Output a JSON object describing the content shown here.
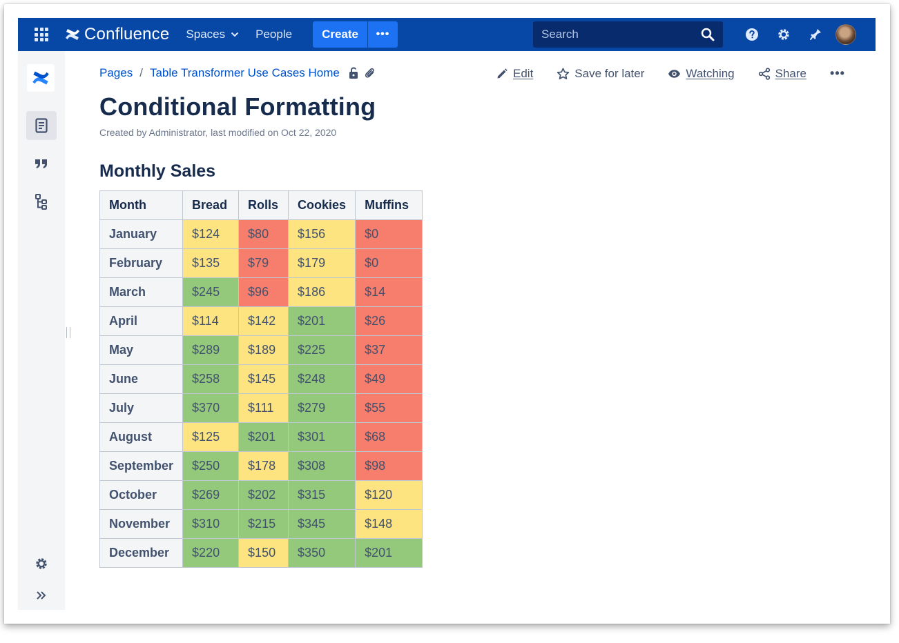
{
  "nav": {
    "logo_text": "Confluence",
    "spaces_label": "Spaces",
    "people_label": "People",
    "create_label": "Create",
    "more_label": "•••",
    "search_placeholder": "Search",
    "icons": [
      "app-switcher-icon",
      "help-icon",
      "settings-icon",
      "notifications-icon",
      "avatar"
    ]
  },
  "sidebar": {
    "items": [
      "space-logo",
      "pages-icon",
      "blog-quote-icon",
      "page-tree-icon",
      "space-settings-icon",
      "expand-sidebar-icon"
    ]
  },
  "breadcrumb": {
    "items": [
      "Pages",
      "Table Transformer Use Cases Home"
    ],
    "separator": "/"
  },
  "actions": {
    "edit": "Edit",
    "save_for_later": "Save for later",
    "watching": "Watching",
    "share": "Share",
    "more": "•••"
  },
  "page": {
    "title": "Conditional Formatting",
    "byline": "Created by Administrator, last modified on Oct 22, 2020",
    "section_heading": "Monthly Sales"
  },
  "colors": {
    "nav_bg": "#0747a6",
    "create_bg": "#1c72f2",
    "link": "#0052cc",
    "cell_green": "#94c97b",
    "cell_yellow": "#fde481",
    "cell_red": "#f77e6c"
  },
  "table": {
    "headers": [
      "Month",
      "Bread",
      "Rolls",
      "Cookies",
      "Muffins"
    ],
    "rows": [
      {
        "month": "January",
        "cells": [
          {
            "v": "$124",
            "c": "y"
          },
          {
            "v": "$80",
            "c": "r"
          },
          {
            "v": "$156",
            "c": "y"
          },
          {
            "v": "$0",
            "c": "r"
          }
        ]
      },
      {
        "month": "February",
        "cells": [
          {
            "v": "$135",
            "c": "y"
          },
          {
            "v": "$79",
            "c": "r"
          },
          {
            "v": "$179",
            "c": "y"
          },
          {
            "v": "$0",
            "c": "r"
          }
        ]
      },
      {
        "month": "March",
        "cells": [
          {
            "v": "$245",
            "c": "g"
          },
          {
            "v": "$96",
            "c": "r"
          },
          {
            "v": "$186",
            "c": "y"
          },
          {
            "v": "$14",
            "c": "r"
          }
        ]
      },
      {
        "month": "April",
        "cells": [
          {
            "v": "$114",
            "c": "y"
          },
          {
            "v": "$142",
            "c": "y"
          },
          {
            "v": "$201",
            "c": "g"
          },
          {
            "v": "$26",
            "c": "r"
          }
        ]
      },
      {
        "month": "May",
        "cells": [
          {
            "v": "$289",
            "c": "g"
          },
          {
            "v": "$189",
            "c": "y"
          },
          {
            "v": "$225",
            "c": "g"
          },
          {
            "v": "$37",
            "c": "r"
          }
        ]
      },
      {
        "month": "June",
        "cells": [
          {
            "v": "$258",
            "c": "g"
          },
          {
            "v": "$145",
            "c": "y"
          },
          {
            "v": "$248",
            "c": "g"
          },
          {
            "v": "$49",
            "c": "r"
          }
        ]
      },
      {
        "month": "July",
        "cells": [
          {
            "v": "$370",
            "c": "g"
          },
          {
            "v": "$111",
            "c": "y"
          },
          {
            "v": "$279",
            "c": "g"
          },
          {
            "v": "$55",
            "c": "r"
          }
        ]
      },
      {
        "month": "August",
        "cells": [
          {
            "v": "$125",
            "c": "y"
          },
          {
            "v": "$201",
            "c": "g"
          },
          {
            "v": "$301",
            "c": "g"
          },
          {
            "v": "$68",
            "c": "r"
          }
        ]
      },
      {
        "month": "September",
        "cells": [
          {
            "v": "$250",
            "c": "g"
          },
          {
            "v": "$178",
            "c": "y"
          },
          {
            "v": "$308",
            "c": "g"
          },
          {
            "v": "$98",
            "c": "r"
          }
        ]
      },
      {
        "month": "October",
        "cells": [
          {
            "v": "$269",
            "c": "g"
          },
          {
            "v": "$202",
            "c": "g"
          },
          {
            "v": "$315",
            "c": "g"
          },
          {
            "v": "$120",
            "c": "y"
          }
        ]
      },
      {
        "month": "November",
        "cells": [
          {
            "v": "$310",
            "c": "g"
          },
          {
            "v": "$215",
            "c": "g"
          },
          {
            "v": "$345",
            "c": "g"
          },
          {
            "v": "$148",
            "c": "y"
          }
        ]
      },
      {
        "month": "December",
        "cells": [
          {
            "v": "$220",
            "c": "g"
          },
          {
            "v": "$150",
            "c": "y"
          },
          {
            "v": "$350",
            "c": "g"
          },
          {
            "v": "$201",
            "c": "g"
          }
        ]
      }
    ]
  }
}
